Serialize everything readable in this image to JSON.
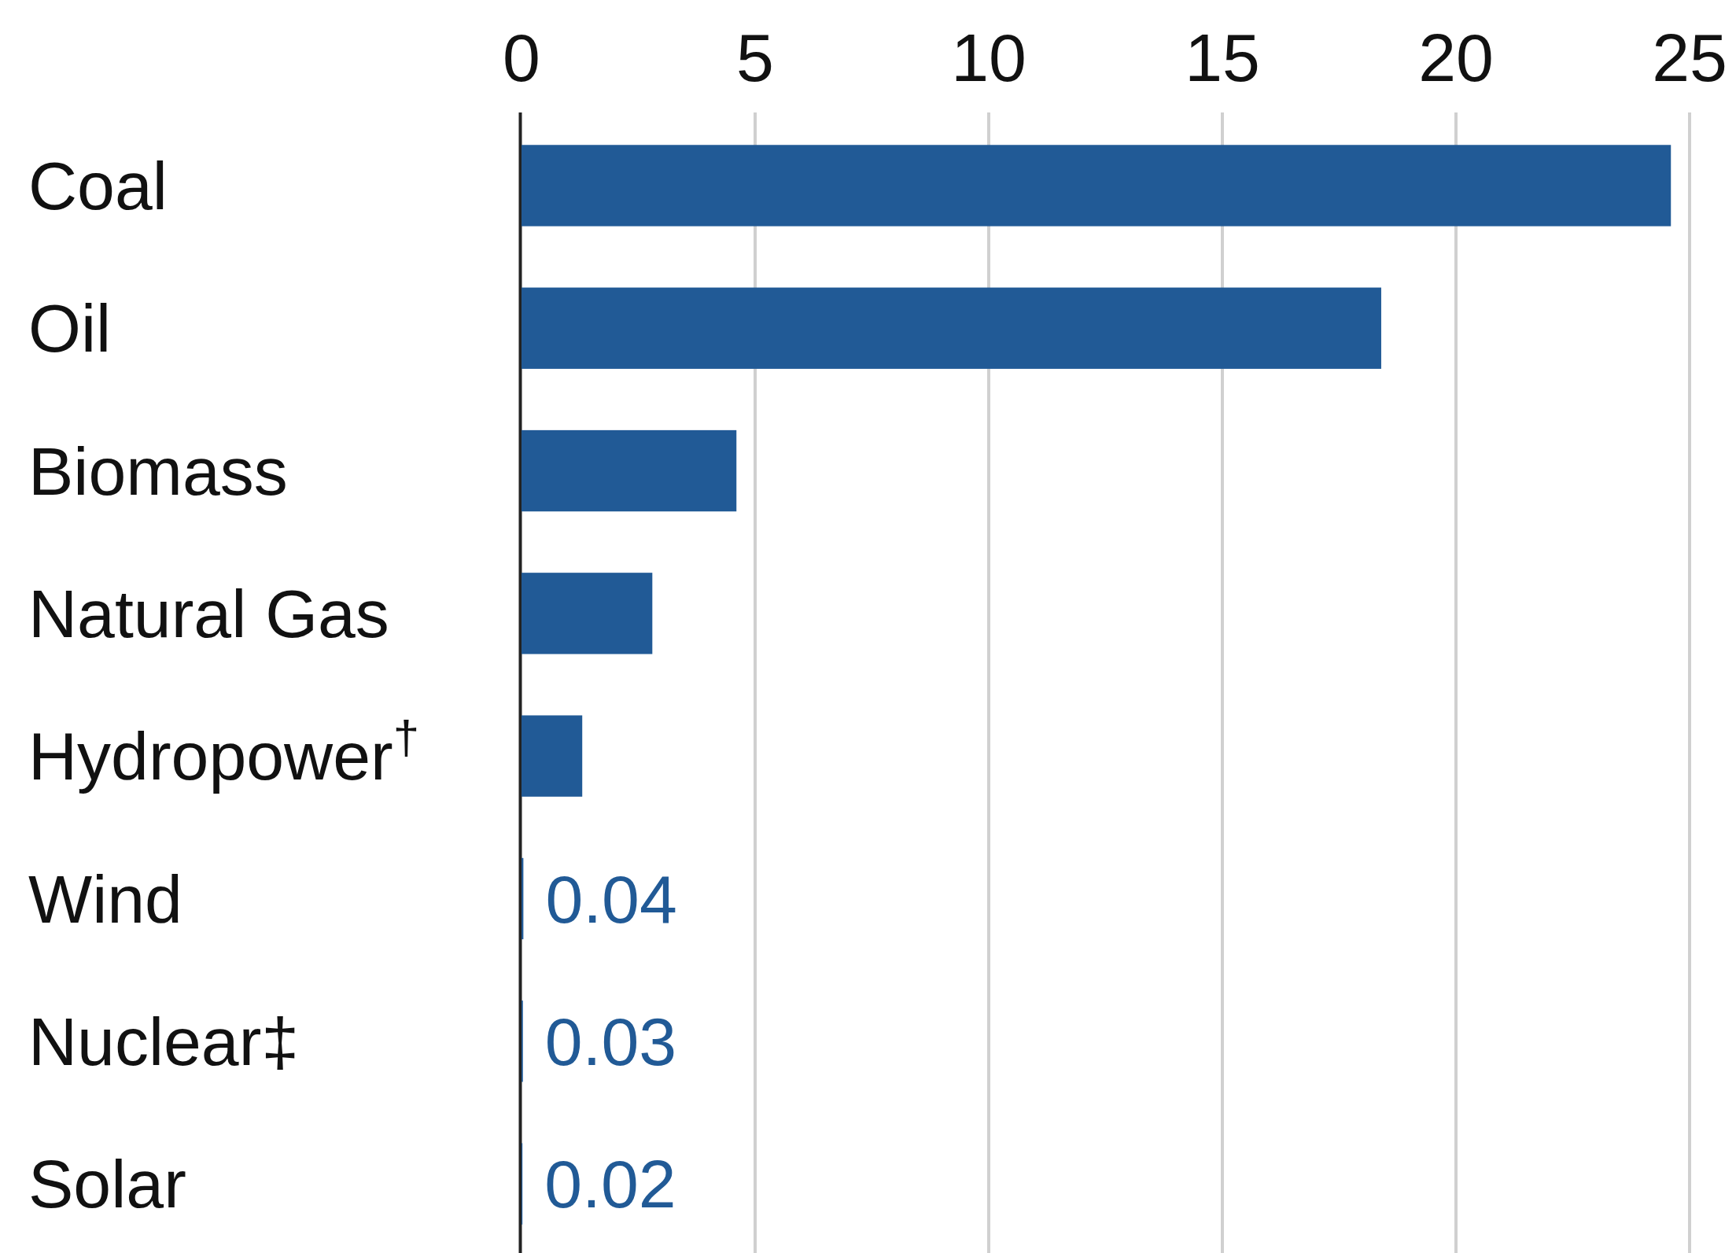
{
  "chart_data": {
    "type": "bar",
    "orientation": "horizontal",
    "categories": [
      "Coal",
      "Oil",
      "Biomass",
      "Natural Gas",
      "Hydropower$^{†}$",
      "Wind",
      "Nuclear‡",
      "Solar"
    ],
    "values": [
      24.6,
      18.4,
      4.6,
      2.8,
      1.3,
      0.04,
      0.03,
      0.02
    ],
    "value_labels": [
      null,
      null,
      null,
      null,
      null,
      "0.04",
      "0.03",
      "0.02"
    ],
    "color": "#215a96",
    "xlim": [
      0,
      25
    ],
    "xticks": [
      0,
      5,
      10,
      15,
      20,
      25
    ],
    "grid": "x"
  }
}
